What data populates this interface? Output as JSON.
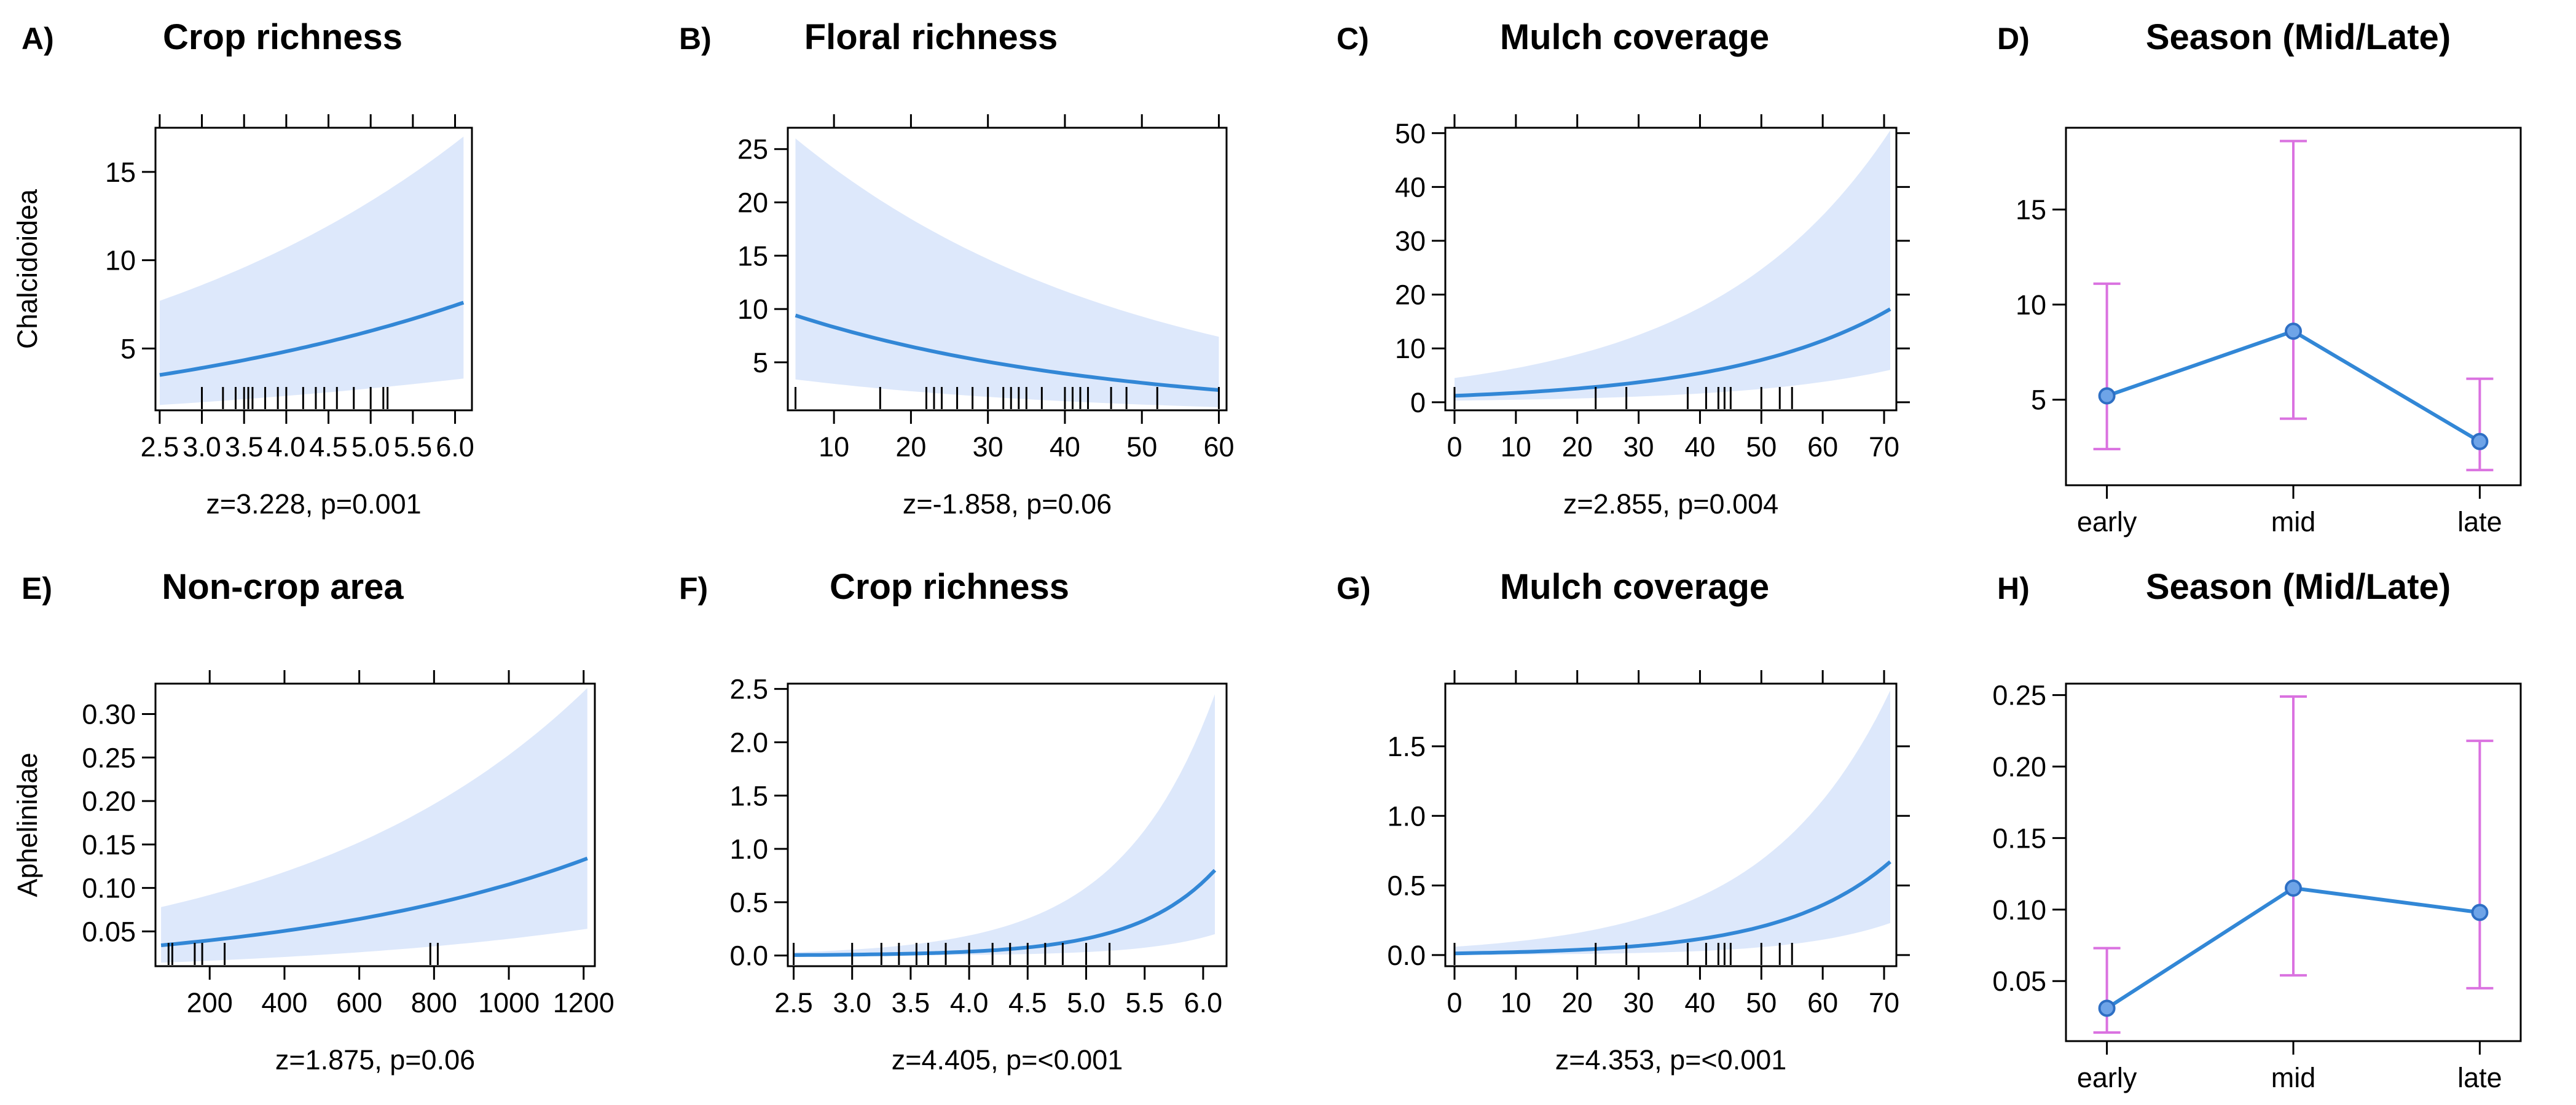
{
  "colors": {
    "band": "#dde8fb",
    "line": "#3287d6",
    "errorbar": "#da72e0",
    "point_fill": "#6ea4e8",
    "point_stroke": "#2e6fc4"
  },
  "chart_data": [
    {
      "id": "A",
      "type": "line",
      "letter": "A)",
      "title": "Crop richness",
      "ylabel": "Chalcidoidea",
      "stat": "z=3.228, p=0.001",
      "xlim": [
        2.45,
        6.2
      ],
      "ylim": [
        1.5,
        17.5
      ],
      "xticks": [
        2.5,
        3.0,
        3.5,
        4.0,
        4.5,
        5.0,
        5.5,
        6.0
      ],
      "xticklabels": [
        "2.5",
        "3.0",
        "3.5",
        "4.0",
        "4.5",
        "5.0",
        "5.5",
        "6.0"
      ],
      "yticks": [
        5,
        10,
        15
      ],
      "yticklabels": [
        "5",
        "10",
        "15"
      ],
      "top_ticks": true,
      "right_ticks": false,
      "fit": {
        "x": [
          2.5,
          6.1
        ],
        "y0": 3.5,
        "y1": 7.6
      },
      "band": {
        "lower0": 1.8,
        "lower1": 3.3,
        "upper0": 7.7,
        "upper1": 17.0
      },
      "rug": [
        3.0,
        3.25,
        3.4,
        3.5,
        3.55,
        3.6,
        3.75,
        3.9,
        4.0,
        4.2,
        4.35,
        4.45,
        4.6,
        4.8,
        5.0,
        5.15,
        5.2
      ]
    },
    {
      "id": "B",
      "type": "line",
      "letter": "B)",
      "title": "Floral richness",
      "ylabel": "",
      "stat": "z=-1.858, p=0.06",
      "xlim": [
        4,
        61
      ],
      "ylim": [
        0.5,
        27
      ],
      "xticks": [
        10,
        20,
        30,
        40,
        50,
        60
      ],
      "xticklabels": [
        "10",
        "20",
        "30",
        "40",
        "50",
        "60"
      ],
      "yticks": [
        5,
        10,
        15,
        20,
        25
      ],
      "yticklabels": [
        "5",
        "10",
        "15",
        "20",
        "25"
      ],
      "top_ticks": true,
      "right_ticks": false,
      "fit": {
        "x": [
          5,
          60
        ],
        "y0": 9.4,
        "y1": 2.4
      },
      "band": {
        "lower0": 3.4,
        "lower1": 0.8,
        "upper0": 26.0,
        "upper1": 7.4
      },
      "rug": [
        5,
        16,
        22,
        23,
        24,
        26,
        28,
        30,
        32,
        33,
        34,
        35,
        37,
        40,
        41,
        42,
        43,
        46,
        48,
        52,
        60
      ]
    },
    {
      "id": "C",
      "type": "line",
      "letter": "C)",
      "title": "Mulch coverage",
      "ylabel": "",
      "stat": "z=2.855, p=0.004",
      "xlim": [
        -1.5,
        72
      ],
      "ylim": [
        -1.5,
        51
      ],
      "xticks": [
        0,
        10,
        20,
        30,
        40,
        50,
        60,
        70
      ],
      "xticklabels": [
        "0",
        "10",
        "20",
        "30",
        "40",
        "50",
        "60",
        "70"
      ],
      "yticks": [
        0,
        10,
        20,
        30,
        40,
        50
      ],
      "yticklabels": [
        "0",
        "10",
        "20",
        "30",
        "40",
        "50"
      ],
      "top_ticks": true,
      "right_ticks": true,
      "fit": {
        "x": [
          0,
          71
        ],
        "y0": 1.2,
        "y1": 17.3
      },
      "band": {
        "lower0": 0.3,
        "lower1": 6.0,
        "upper0": 4.5,
        "upper1": 50.5
      },
      "rug": [
        0,
        23,
        28,
        38,
        41,
        43,
        44,
        45,
        50,
        53,
        55
      ]
    },
    {
      "id": "D",
      "type": "errorbar",
      "letter": "D)",
      "title": "Season (Mid/Late)",
      "ylabel": "",
      "stat": "",
      "ylim": [
        0.5,
        19.3
      ],
      "categories": [
        "early",
        "mid",
        "late"
      ],
      "values": [
        5.2,
        8.6,
        2.8
      ],
      "lower": [
        2.4,
        4.0,
        1.3
      ],
      "upper": [
        11.1,
        18.6,
        6.1
      ],
      "yticks": [
        5,
        10,
        15
      ],
      "yticklabels": [
        "5",
        "10",
        "15"
      ],
      "top_ticks": false,
      "right_ticks": false
    },
    {
      "id": "E",
      "type": "line",
      "letter": "E)",
      "title": "Non-crop area",
      "ylabel": "Aphelinidae",
      "stat": "z=1.875, p=0.06",
      "xlim": [
        55,
        1230
      ],
      "ylim": [
        0.01,
        0.335
      ],
      "xticks": [
        200,
        400,
        600,
        800,
        1000,
        1200
      ],
      "xticklabels": [
        "200",
        "400",
        "600",
        "800",
        "1000",
        "1200"
      ],
      "yticks": [
        0.05,
        0.1,
        0.15,
        0.2,
        0.25,
        0.3
      ],
      "yticklabels": [
        "0.05",
        "0.10",
        "0.15",
        "0.20",
        "0.25",
        "0.30"
      ],
      "top_ticks": true,
      "right_ticks": false,
      "fit": {
        "x": [
          70,
          1210
        ],
        "y0": 0.034,
        "y1": 0.134
      },
      "band": {
        "lower0": 0.014,
        "lower1": 0.053,
        "upper0": 0.078,
        "upper1": 0.33
      },
      "rug": [
        90,
        100,
        160,
        180,
        240,
        790,
        810
      ]
    },
    {
      "id": "F",
      "type": "line",
      "letter": "F)",
      "title": "Crop richness",
      "ylabel": "",
      "stat": "z=4.405, p=<0.001",
      "xlim": [
        2.45,
        6.2
      ],
      "ylim": [
        -0.1,
        2.55
      ],
      "xticks": [
        2.5,
        3.0,
        3.5,
        4.0,
        4.5,
        5.0,
        5.5,
        6.0
      ],
      "xticklabels": [
        "2.5",
        "3.0",
        "3.5",
        "4.0",
        "4.5",
        "5.0",
        "5.5",
        "6.0"
      ],
      "yticks": [
        0,
        0.5,
        1.0,
        1.5,
        2.0,
        2.5
      ],
      "yticklabels": [
        "0.0",
        "0.5",
        "1.0",
        "1.5",
        "2.0",
        "2.5"
      ],
      "top_ticks": false,
      "right_ticks": false,
      "fit": {
        "x": [
          2.5,
          6.1
        ],
        "y0": 0.004,
        "y1": 0.8
      },
      "band": {
        "lower0": 0.0005,
        "lower1": 0.2,
        "upper0": 0.03,
        "upper1": 2.45
      },
      "rug": [
        2.5,
        3.0,
        3.25,
        3.4,
        3.55,
        3.65,
        3.8,
        4.0,
        4.2,
        4.35,
        4.5,
        4.65,
        4.8,
        5.0,
        5.2
      ]
    },
    {
      "id": "G",
      "type": "line",
      "letter": "G)",
      "title": "Mulch coverage",
      "ylabel": "",
      "stat": "z=4.353, p=<0.001",
      "xlim": [
        -1.5,
        72
      ],
      "ylim": [
        -0.08,
        1.95
      ],
      "xticks": [
        0,
        10,
        20,
        30,
        40,
        50,
        60,
        70
      ],
      "xticklabels": [
        "0",
        "10",
        "20",
        "30",
        "40",
        "50",
        "60",
        "70"
      ],
      "yticks": [
        0,
        0.5,
        1.0,
        1.5
      ],
      "yticklabels": [
        "0.0",
        "0.5",
        "1.0",
        "1.5"
      ],
      "top_ticks": true,
      "right_ticks": true,
      "fit": {
        "x": [
          0,
          71
        ],
        "y0": 0.012,
        "y1": 0.67
      },
      "band": {
        "lower0": 0.002,
        "lower1": 0.23,
        "upper0": 0.06,
        "upper1": 1.9
      },
      "rug": [
        0,
        23,
        28,
        38,
        41,
        43,
        44,
        45,
        50,
        53,
        55
      ]
    },
    {
      "id": "H",
      "type": "errorbar",
      "letter": "H)",
      "title": "Season (Mid/Late)",
      "ylabel": "",
      "stat": "",
      "ylim": [
        0.008,
        0.258
      ],
      "categories": [
        "early",
        "mid",
        "late"
      ],
      "values": [
        0.031,
        0.115,
        0.098
      ],
      "lower": [
        0.014,
        0.054,
        0.045
      ],
      "upper": [
        0.073,
        0.249,
        0.218
      ],
      "yticks": [
        0.05,
        0.1,
        0.15,
        0.2,
        0.25
      ],
      "yticklabels": [
        "0.05",
        "0.10",
        "0.15",
        "0.20",
        "0.25"
      ],
      "top_ticks": false,
      "right_ticks": false
    }
  ]
}
